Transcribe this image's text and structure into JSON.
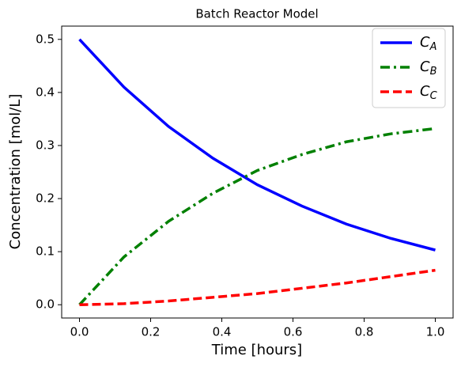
{
  "chart_data": {
    "type": "line",
    "title": "Batch Reactor Model",
    "x_label": "Time [hours]",
    "y_label": "Concentration [mol/L]",
    "x": [
      0,
      0.125,
      0.25,
      0.375,
      0.5,
      0.625,
      0.75,
      0.875,
      1.0
    ],
    "series": [
      {
        "name": "CA",
        "color": "#0000ff",
        "linestyle": "solid",
        "values": [
          0.5,
          0.41,
          0.336,
          0.276,
          0.226,
          0.186,
          0.152,
          0.125,
          0.103
        ]
      },
      {
        "name": "CB",
        "color": "#008000",
        "linestyle": "dashdot",
        "values": [
          0,
          0.09,
          0.157,
          0.21,
          0.253,
          0.283,
          0.307,
          0.322,
          0.332
        ]
      },
      {
        "name": "CC",
        "color": "#ff0000",
        "linestyle": "dashed",
        "values": [
          0,
          0.002,
          0.007,
          0.014,
          0.021,
          0.031,
          0.041,
          0.053,
          0.065
        ]
      }
    ],
    "xlim": [
      -0.05,
      1.05
    ],
    "xticks": [
      {
        "value": 0,
        "label": "0.0"
      },
      0.2,
      0.4,
      0.6,
      0.8,
      {
        "value": 1,
        "label": "1.0"
      }
    ],
    "ylim": [
      -0.025,
      0.525
    ],
    "yticks": [
      {
        "value": 0,
        "label": "0.0"
      },
      0.1,
      0.2,
      0.3,
      0.4,
      0.5
    ],
    "grid": false,
    "legend": "upper right"
  }
}
